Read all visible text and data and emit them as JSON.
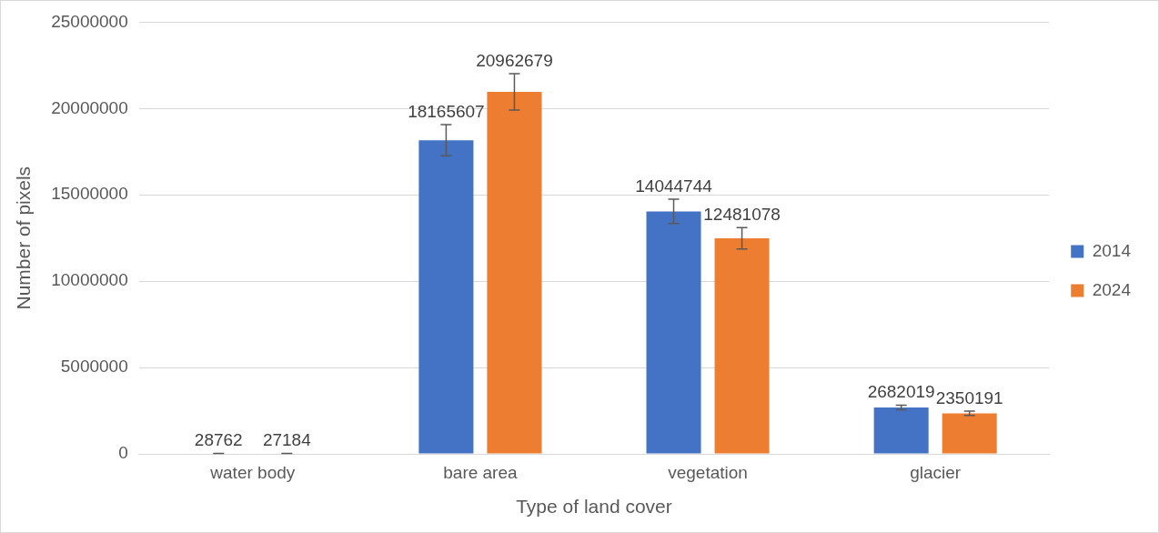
{
  "chart_data": {
    "type": "bar",
    "xlabel": "Type of land cover",
    "ylabel": "Number of pixels",
    "categories": [
      "water body",
      "bare area",
      "vegetation",
      "glacier"
    ],
    "series": [
      {
        "name": "2014",
        "color": "#4472c4",
        "values": [
          28762,
          18165607,
          14044744,
          2682019
        ],
        "errors": [
          1400,
          900000,
          700000,
          130000
        ]
      },
      {
        "name": "2024",
        "color": "#ed7d31",
        "values": [
          27184,
          20962679,
          12481078,
          2350191
        ],
        "errors": [
          1400,
          1050000,
          620000,
          120000
        ]
      }
    ],
    "ylim": [
      0,
      25000000
    ],
    "yticks": [
      0,
      5000000,
      10000000,
      15000000,
      20000000,
      25000000
    ],
    "grid": "y",
    "legend": "right",
    "data_labels": true
  }
}
